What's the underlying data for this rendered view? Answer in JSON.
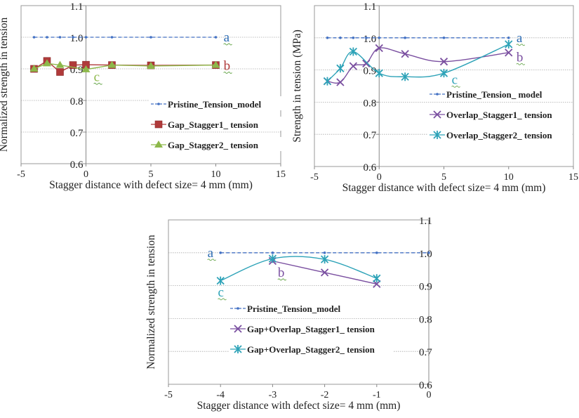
{
  "chart_data": [
    {
      "type": "line",
      "xlabel": "Stagger distance with defect size= 4 mm (mm)",
      "ylabel": "Normalized strength in tension",
      "xlim": [
        -5,
        15
      ],
      "ylim": [
        0.6,
        1.1
      ],
      "xticks": [
        "-5",
        "0",
        "5",
        "10",
        "15"
      ],
      "yticks": [
        "0.6",
        "0.7",
        "0.8",
        "0.9",
        "1.0",
        "1.1"
      ],
      "y_axis_at_x": 0,
      "grid": "horizontal dotted",
      "smooth": false,
      "legend_placement": "center-right",
      "series": [
        {
          "name": "Pristine_Tension_model",
          "color": "#4472C4",
          "marker": "dot",
          "dash": true,
          "x": [
            -4,
            -3,
            -2,
            -1,
            0,
            2,
            5,
            10
          ],
          "y": [
            1.0,
            1.0,
            1.0,
            1.0,
            1.0,
            1.0,
            1.0,
            1.0
          ]
        },
        {
          "name": "Gap_Stagger1_ tension",
          "color": "#B03A3A",
          "marker": "square",
          "x": [
            -4,
            -3,
            -2,
            -1,
            0,
            2,
            5,
            10
          ],
          "y": [
            0.9,
            0.925,
            0.89,
            0.912,
            0.913,
            0.912,
            0.911,
            0.912
          ]
        },
        {
          "name": "Gap_Stagger2_ tension",
          "color": "#8DB84A",
          "marker": "triangle",
          "x": [
            -4,
            -3,
            -2,
            0,
            2,
            5,
            10
          ],
          "y": [
            0.9,
            0.917,
            0.912,
            0.898,
            0.912,
            0.909,
            0.912
          ]
        }
      ],
      "annotations": [
        {
          "text": "a",
          "x": 10.6,
          "y": 1.0,
          "color": "#2E6DB4"
        },
        {
          "text": "b",
          "x": 10.6,
          "y": 0.91,
          "color": "#B03A3A"
        },
        {
          "text": "c",
          "x": 0.6,
          "y": 0.875,
          "color": "#8DB84A"
        }
      ]
    },
    {
      "type": "line",
      "xlabel": "Stagger distance with defect size= 4 mm (mm)",
      "ylabel": "Strength in tension (MPa)",
      "xlim": [
        -5,
        15
      ],
      "ylim": [
        0.6,
        1.1
      ],
      "xticks": [
        "-5",
        "0",
        "5",
        "10",
        "15"
      ],
      "yticks": [
        "0.6",
        "0.7",
        "0.8",
        "0.9",
        "1.0",
        "1.1"
      ],
      "y_axis_at_x": 0,
      "grid": "horizontal dotted",
      "smooth": true,
      "legend_placement": "center-right",
      "series": [
        {
          "name": "Pristine_Tension_ model",
          "color": "#4472C4",
          "marker": "dot",
          "dash": true,
          "x": [
            -4,
            -3,
            -2,
            -1,
            0,
            2,
            5,
            10
          ],
          "y": [
            1.0,
            1.0,
            1.0,
            1.0,
            1.0,
            1.0,
            1.0,
            1.0
          ]
        },
        {
          "name": "Overlap_Stagger1_ tension",
          "color": "#7A4FA0",
          "marker": "x",
          "x": [
            -4,
            -3,
            -2,
            -1,
            0,
            2,
            5,
            10
          ],
          "y": [
            0.865,
            0.862,
            0.912,
            0.92,
            0.968,
            0.95,
            0.926,
            0.954
          ]
        },
        {
          "name": "Overlap_Stagger2_ tension",
          "color": "#2EA3B8",
          "marker": "star",
          "x": [
            -4,
            -3,
            -2,
            0,
            2,
            5,
            10
          ],
          "y": [
            0.865,
            0.905,
            0.957,
            0.89,
            0.879,
            0.89,
            0.98
          ]
        }
      ],
      "annotations": [
        {
          "text": "a",
          "x": 10.6,
          "y": 1.0,
          "color": "#2E6DB4"
        },
        {
          "text": "b",
          "x": 10.6,
          "y": 0.94,
          "color": "#7A4FA0"
        },
        {
          "text": "c",
          "x": 5.6,
          "y": 0.87,
          "color": "#2EA3B8"
        }
      ]
    },
    {
      "type": "line",
      "xlabel": "Stagger distance with defect size= 4 mm (mm)",
      "ylabel": "Normalized strength in tension",
      "xlim": [
        -5,
        0
      ],
      "ylim": [
        0.6,
        1.1
      ],
      "xticks": [
        "-5",
        "-4",
        "-3",
        "-2",
        "-1",
        "0"
      ],
      "yticks": [
        "0.6",
        "0.7",
        "0.8",
        "0.9",
        "1.0",
        "1.1"
      ],
      "y_axis_at_x": 0,
      "grid": "horizontal dotted",
      "smooth": true,
      "legend_placement": "center",
      "series": [
        {
          "name": "Pristine_Tension_model",
          "color": "#4472C4",
          "marker": "dot",
          "dash": true,
          "x": [
            -4,
            -3,
            -2,
            -1,
            0
          ],
          "y": [
            1.0,
            1.0,
            1.0,
            1.0,
            1.0
          ]
        },
        {
          "name": "Gap+Overlap_Stagger1_ tension",
          "color": "#7A4FA0",
          "marker": "x",
          "x": [
            -3,
            -2,
            -1
          ],
          "y": [
            0.975,
            0.94,
            0.905
          ]
        },
        {
          "name": "Gap+Overlap_Stagger2_ tension",
          "color": "#2EA3B8",
          "marker": "star",
          "x": [
            -4,
            -3,
            -2,
            -1
          ],
          "y": [
            0.915,
            0.982,
            0.98,
            0.922
          ]
        }
      ],
      "annotations": [
        {
          "text": "a",
          "x": -4.25,
          "y": 1.0,
          "color": "#2E6DB4"
        },
        {
          "text": "b",
          "x": -2.9,
          "y": 0.94,
          "color": "#7A4FA0"
        },
        {
          "text": "c",
          "x": -4.05,
          "y": 0.88,
          "color": "#2EA3B8"
        }
      ]
    }
  ]
}
